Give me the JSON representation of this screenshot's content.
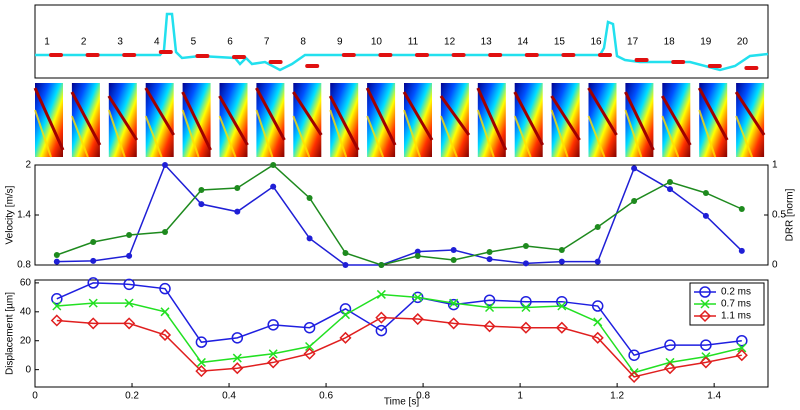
{
  "ecg": {
    "beat_labels": [
      "1",
      "2",
      "3",
      "4",
      "5",
      "6",
      "7",
      "8",
      "9",
      "10",
      "11",
      "12",
      "13",
      "14",
      "15",
      "16",
      "17",
      "18",
      "19",
      "20"
    ]
  },
  "chart_data": [
    {
      "type": "line",
      "ylabel": "Velocity [m/s]",
      "y2label": "DRR [norm]",
      "x": [
        0.045,
        0.12,
        0.194,
        0.268,
        0.343,
        0.417,
        0.491,
        0.566,
        0.64,
        0.714,
        0.789,
        0.863,
        0.937,
        1.012,
        1.086,
        1.16,
        1.235,
        1.309,
        1.383,
        1.457
      ],
      "xlim": [
        0,
        1.511
      ],
      "ylim": [
        0.8,
        2
      ],
      "yticks": [
        0.8,
        1.4,
        2
      ],
      "y2lim": [
        0,
        1
      ],
      "y2ticks": [
        0,
        0.5,
        1
      ],
      "series": [
        {
          "color": "#1f1fd6",
          "marker": "dot",
          "values": [
            0.84,
            0.85,
            0.91,
            2.0,
            1.53,
            1.44,
            1.74,
            1.12,
            0.8,
            0.8,
            0.96,
            0.98,
            0.87,
            0.82,
            0.84,
            0.84,
            1.96,
            1.71,
            1.39,
            0.97
          ]
        },
        {
          "color": "#1e8a1e",
          "marker": "dot",
          "axis": "y2",
          "values": [
            0.1,
            0.23,
            0.3,
            0.33,
            0.75,
            0.77,
            1.0,
            0.67,
            0.12,
            0,
            0.09,
            0.05,
            0.13,
            0.19,
            0.15,
            0.38,
            0.64,
            0.83,
            0.72,
            0.56
          ]
        }
      ]
    },
    {
      "type": "line",
      "xlabel": "Time [s]",
      "ylabel": "Displacement [µm]",
      "legend": "upper right",
      "x": [
        0.045,
        0.12,
        0.194,
        0.268,
        0.343,
        0.417,
        0.491,
        0.566,
        0.64,
        0.714,
        0.789,
        0.863,
        0.937,
        1.012,
        1.086,
        1.16,
        1.235,
        1.309,
        1.383,
        1.457
      ],
      "xlim": [
        0,
        1.511
      ],
      "xticks": [
        0,
        0.2,
        0.4,
        0.6,
        0.8,
        1,
        1.2,
        1.4
      ],
      "ylim": [
        -12,
        62
      ],
      "yticks": [
        0,
        20,
        40,
        60
      ],
      "series": [
        {
          "name": "0.2 ms",
          "color": "#1f1fe0",
          "marker": "circle",
          "values": [
            49,
            60,
            59,
            56,
            19,
            22,
            31,
            29,
            42,
            27,
            50,
            45,
            48,
            47,
            47,
            44,
            10,
            17,
            17,
            20
          ]
        },
        {
          "name": "0.7 ms",
          "color": "#22e022",
          "marker": "x",
          "values": [
            44,
            46,
            46,
            40,
            5,
            8,
            11,
            16,
            38,
            52,
            50,
            46,
            43,
            43,
            44,
            33,
            -2,
            5,
            9,
            15
          ]
        },
        {
          "name": "1.1 ms",
          "color": "#e01f1f",
          "marker": "diamond",
          "values": [
            34,
            32,
            32,
            24,
            -1,
            1,
            5,
            11,
            22,
            36,
            35,
            32,
            30,
            29,
            29,
            22,
            -5,
            1,
            5,
            10
          ]
        }
      ]
    }
  ]
}
